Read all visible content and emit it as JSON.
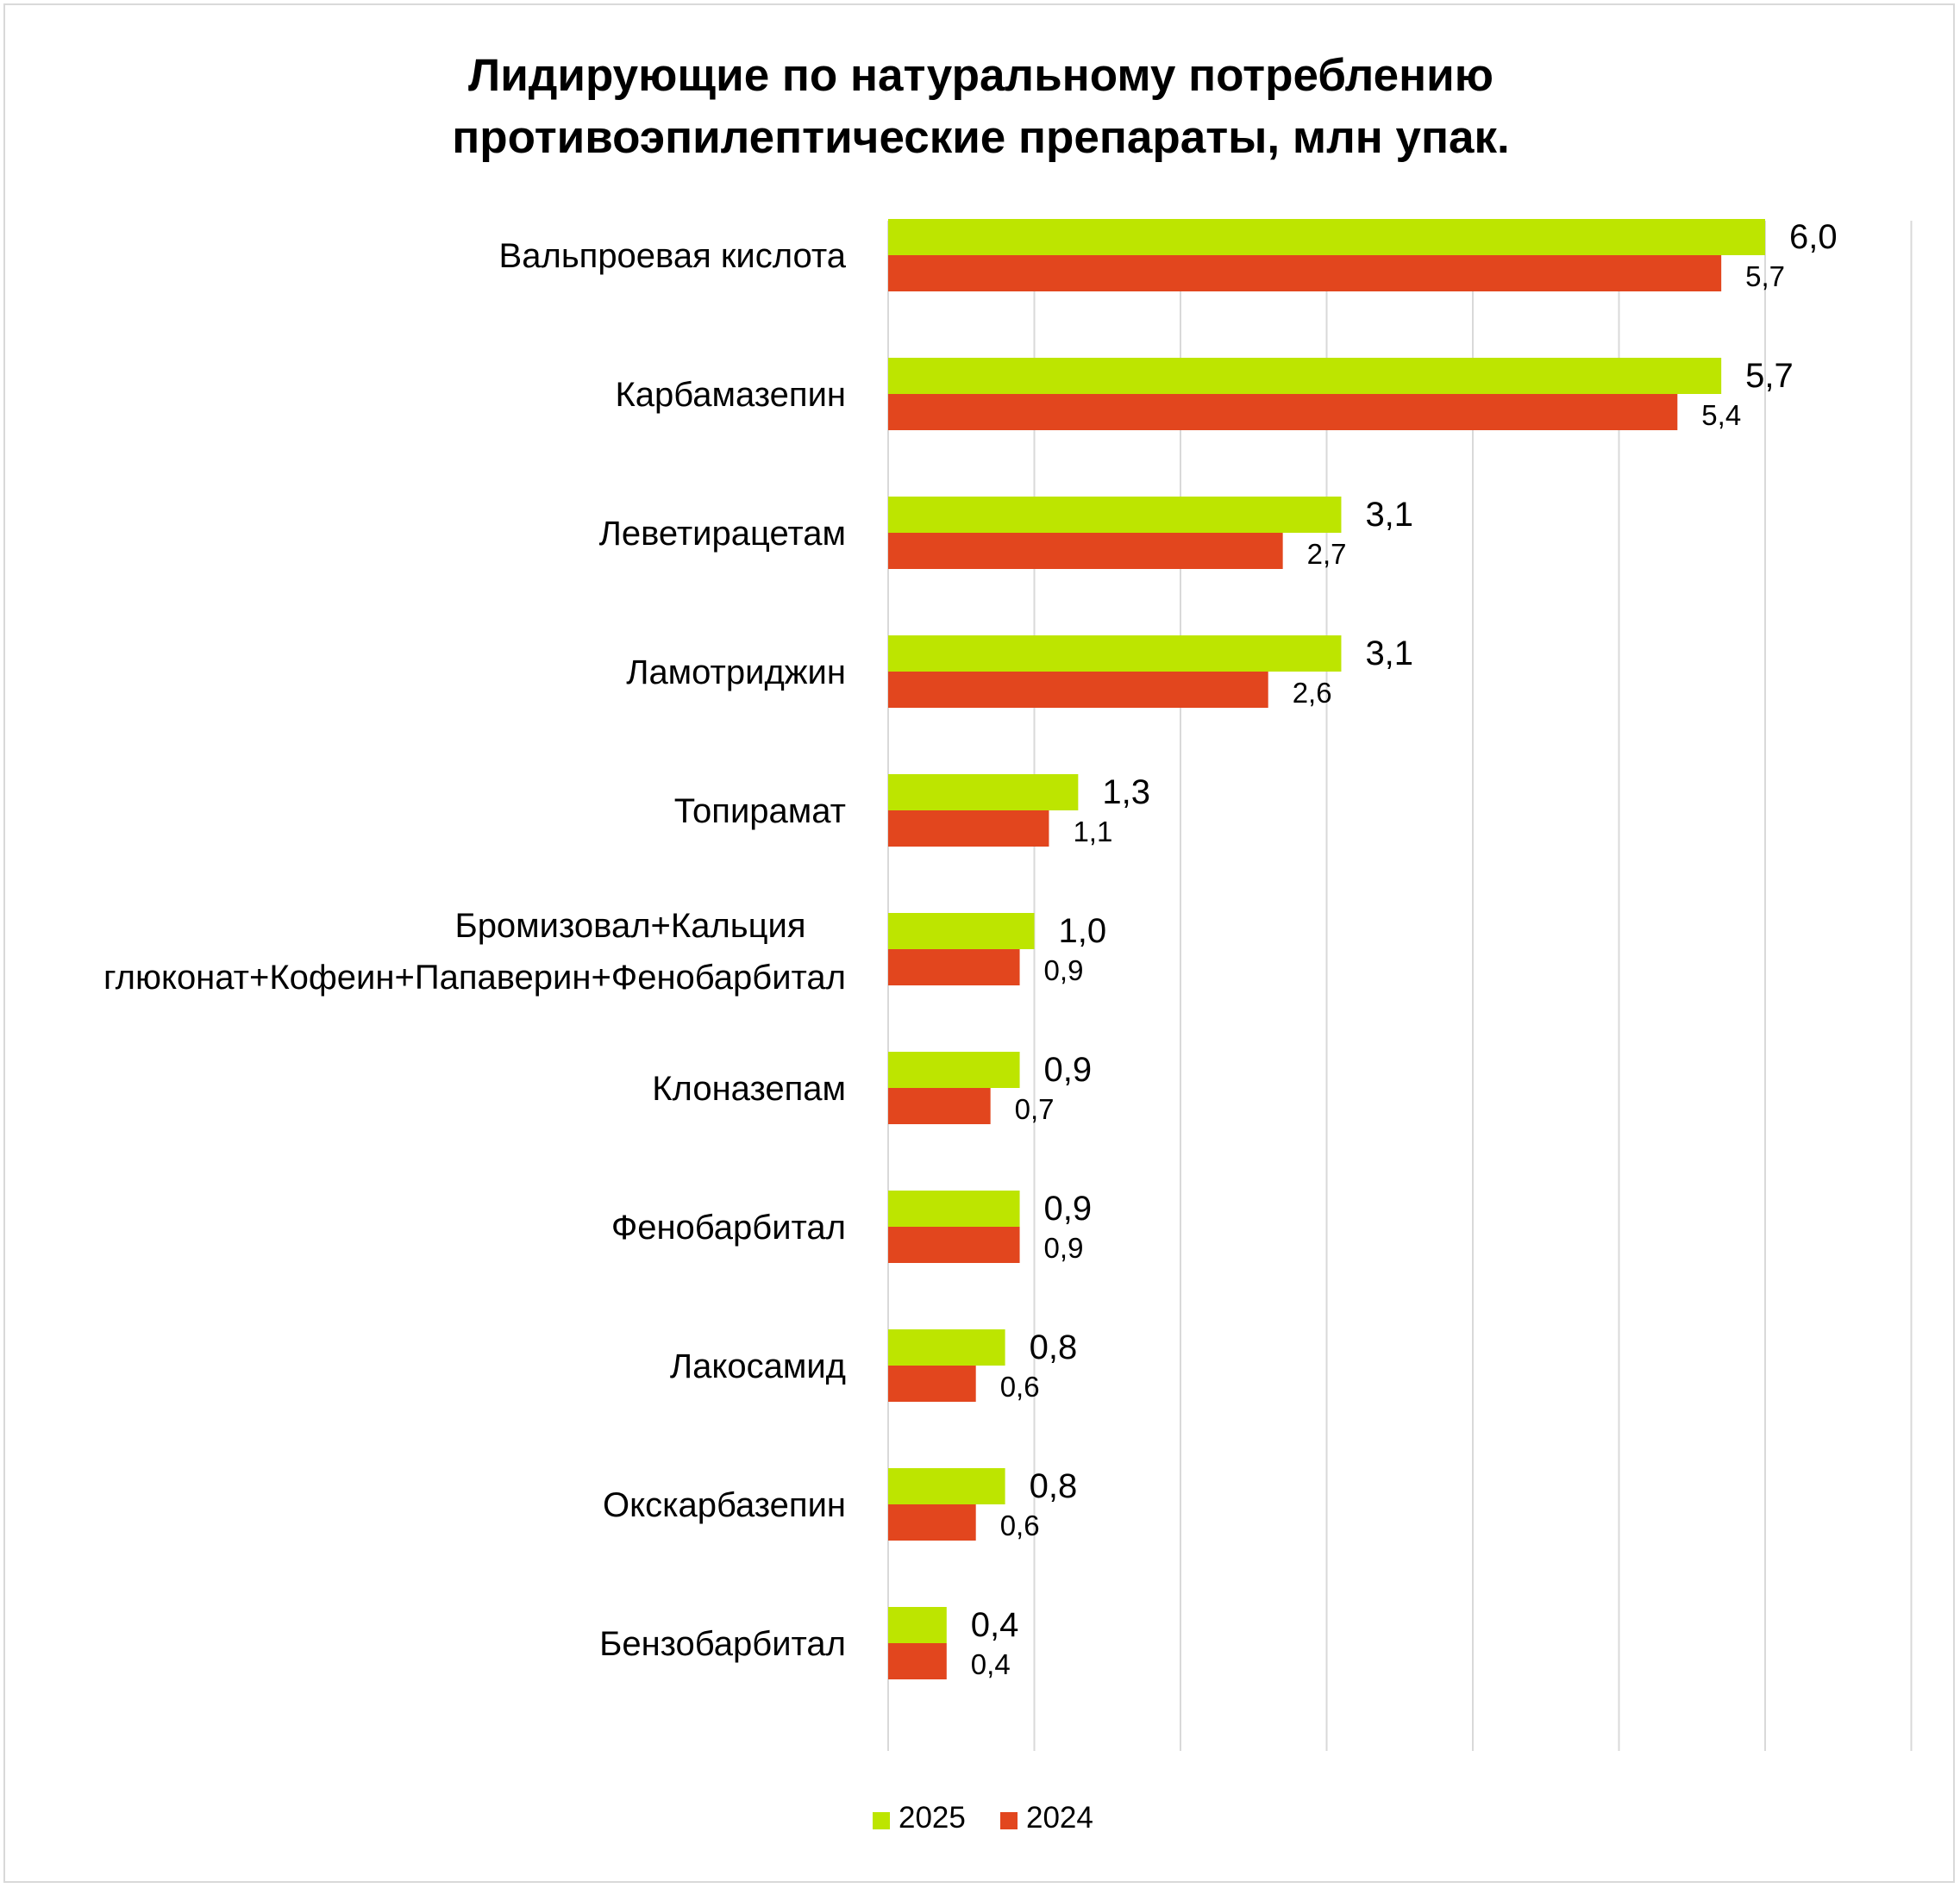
{
  "chart_data": {
    "type": "bar",
    "orientation": "horizontal",
    "title_lines": [
      "Лидирующие по натуральному потреблению",
      "противоэпилептические препараты, млн упак."
    ],
    "categories": [
      [
        "Вальпроевая кислота"
      ],
      [
        "Карбамазепин"
      ],
      [
        "Леветирацетам"
      ],
      [
        "Ламотриджин"
      ],
      [
        "Топирамат"
      ],
      [
        "Бромизовал+Кальция",
        "глюконат+Кофеин+Папаверин+Фенобарбитал"
      ],
      [
        "Клоназепам"
      ],
      [
        "Фенобарбитал"
      ],
      [
        "Лакосамид"
      ],
      [
        "Окскарбазепин"
      ],
      [
        "Бензобарбитал"
      ]
    ],
    "series": [
      {
        "name": "2025",
        "color": "#bde500",
        "values": [
          6.0,
          5.7,
          3.1,
          3.1,
          1.3,
          1.0,
          0.9,
          0.9,
          0.8,
          0.8,
          0.4
        ],
        "labels": [
          "6,0",
          "5,7",
          "3,1",
          "3,1",
          "1,3",
          "1,0",
          "0,9",
          "0,9",
          "0,8",
          "0,8",
          "0,4"
        ]
      },
      {
        "name": "2024",
        "color": "#e2461e",
        "values": [
          5.7,
          5.4,
          2.7,
          2.6,
          1.1,
          0.9,
          0.7,
          0.9,
          0.6,
          0.6,
          0.4
        ],
        "labels": [
          "5,7",
          "5,4",
          "2,7",
          "2,6",
          "1,1",
          "0,9",
          "0,7",
          "0,9",
          "0,6",
          "0,6",
          "0,4"
        ]
      }
    ],
    "xlim": [
      0,
      7
    ],
    "grid": true,
    "legend_position": "bottom-center"
  }
}
